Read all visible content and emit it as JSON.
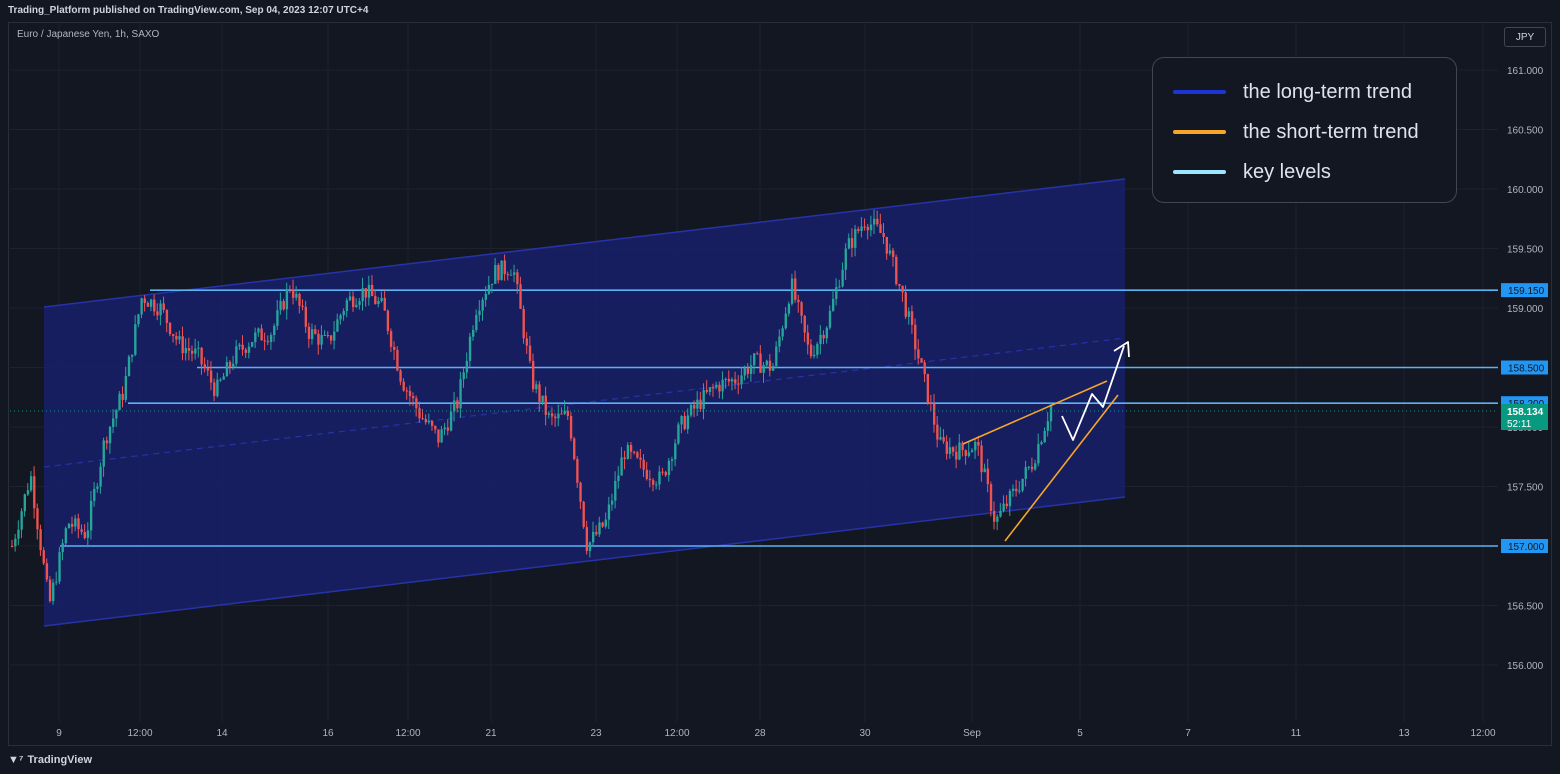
{
  "header": {
    "published": "Trading_Platform published on TradingView.com, Sep 04, 2023 12:07 UTC+4",
    "symbol": "Euro / Japanese Yen, 1h, SAXO",
    "currency": "JPY"
  },
  "footer": {
    "brand": "TradingView",
    "logo_icon": "tradingview-logo-icon"
  },
  "legend": {
    "items": [
      {
        "label": "the long-term trend",
        "color": "#1e35d6"
      },
      {
        "label": "the short-term trend",
        "color": "#f7a52b"
      },
      {
        "label": "key levels",
        "color": "#9be7ff"
      }
    ]
  },
  "colors": {
    "up": "#26a69a",
    "down": "#ef5350",
    "channel_fill": "#19206a",
    "channel_line": "#2633a8",
    "key_level": "#5ab3f5",
    "level_badge_bg": "#2196f3",
    "short_trend": "#f7a52b",
    "projection": "#ffffff",
    "price_badge_bg": "#089981"
  },
  "chart_data": {
    "type": "candlestick",
    "instrument": "EUR/JPY",
    "timeframe": "1h",
    "ylim": [
      155.6,
      161.3
    ],
    "y_ticks": [
      "161.000",
      "160.500",
      "160.000",
      "159.500",
      "159.000",
      "158.500",
      "158.000",
      "157.500",
      "157.000",
      "156.500",
      "156.000"
    ],
    "x_ticks": [
      "9",
      "12:00",
      "14",
      "16",
      "12:00",
      "21",
      "23",
      "12:00",
      "28",
      "30",
      "Sep",
      "5",
      "7",
      "11",
      "13",
      "12:00"
    ],
    "key_levels": [
      "159.150",
      "158.500",
      "158.200",
      "157.000"
    ],
    "current_price": "158.134",
    "countdown": "52:11",
    "anchors": [
      157.0,
      157.6,
      156.5,
      157.2,
      157.1,
      157.9,
      158.3,
      159.1,
      159.0,
      158.7,
      158.6,
      158.3,
      158.6,
      158.75,
      158.8,
      159.2,
      158.8,
      158.7,
      159.05,
      159.15,
      159.0,
      158.4,
      158.1,
      157.9,
      158.2,
      159.0,
      159.3,
      159.35,
      158.4,
      158.05,
      158.1,
      157.0,
      157.2,
      157.8,
      157.65,
      157.55,
      158.0,
      158.2,
      158.35,
      158.4,
      158.55,
      158.5,
      159.2,
      158.6,
      158.9,
      159.5,
      159.75,
      159.6,
      159.1,
      158.5,
      157.85,
      157.8,
      157.85,
      157.2,
      157.45,
      157.7,
      158.18
    ]
  }
}
